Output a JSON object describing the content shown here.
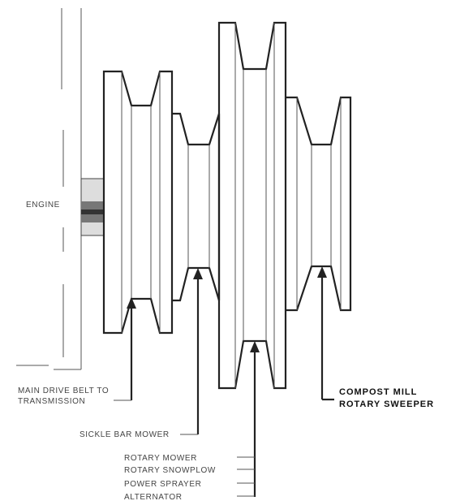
{
  "labels": {
    "engine": "ENGINE",
    "main_drive_line1": "MAIN DRIVE BELT TO",
    "main_drive_line2": "TRANSMISSION",
    "sickle_bar": "SICKLE BAR MOWER",
    "rotary_mower": "ROTARY MOWER",
    "rotary_snowplow": "ROTARY SNOWPLOW",
    "power_sprayer": "POWER SPRAYER",
    "alternator": "ALTERNATOR",
    "compost_mill": "COMPOST MILL",
    "rotary_sweeper": "ROTARY SWEEPER"
  }
}
